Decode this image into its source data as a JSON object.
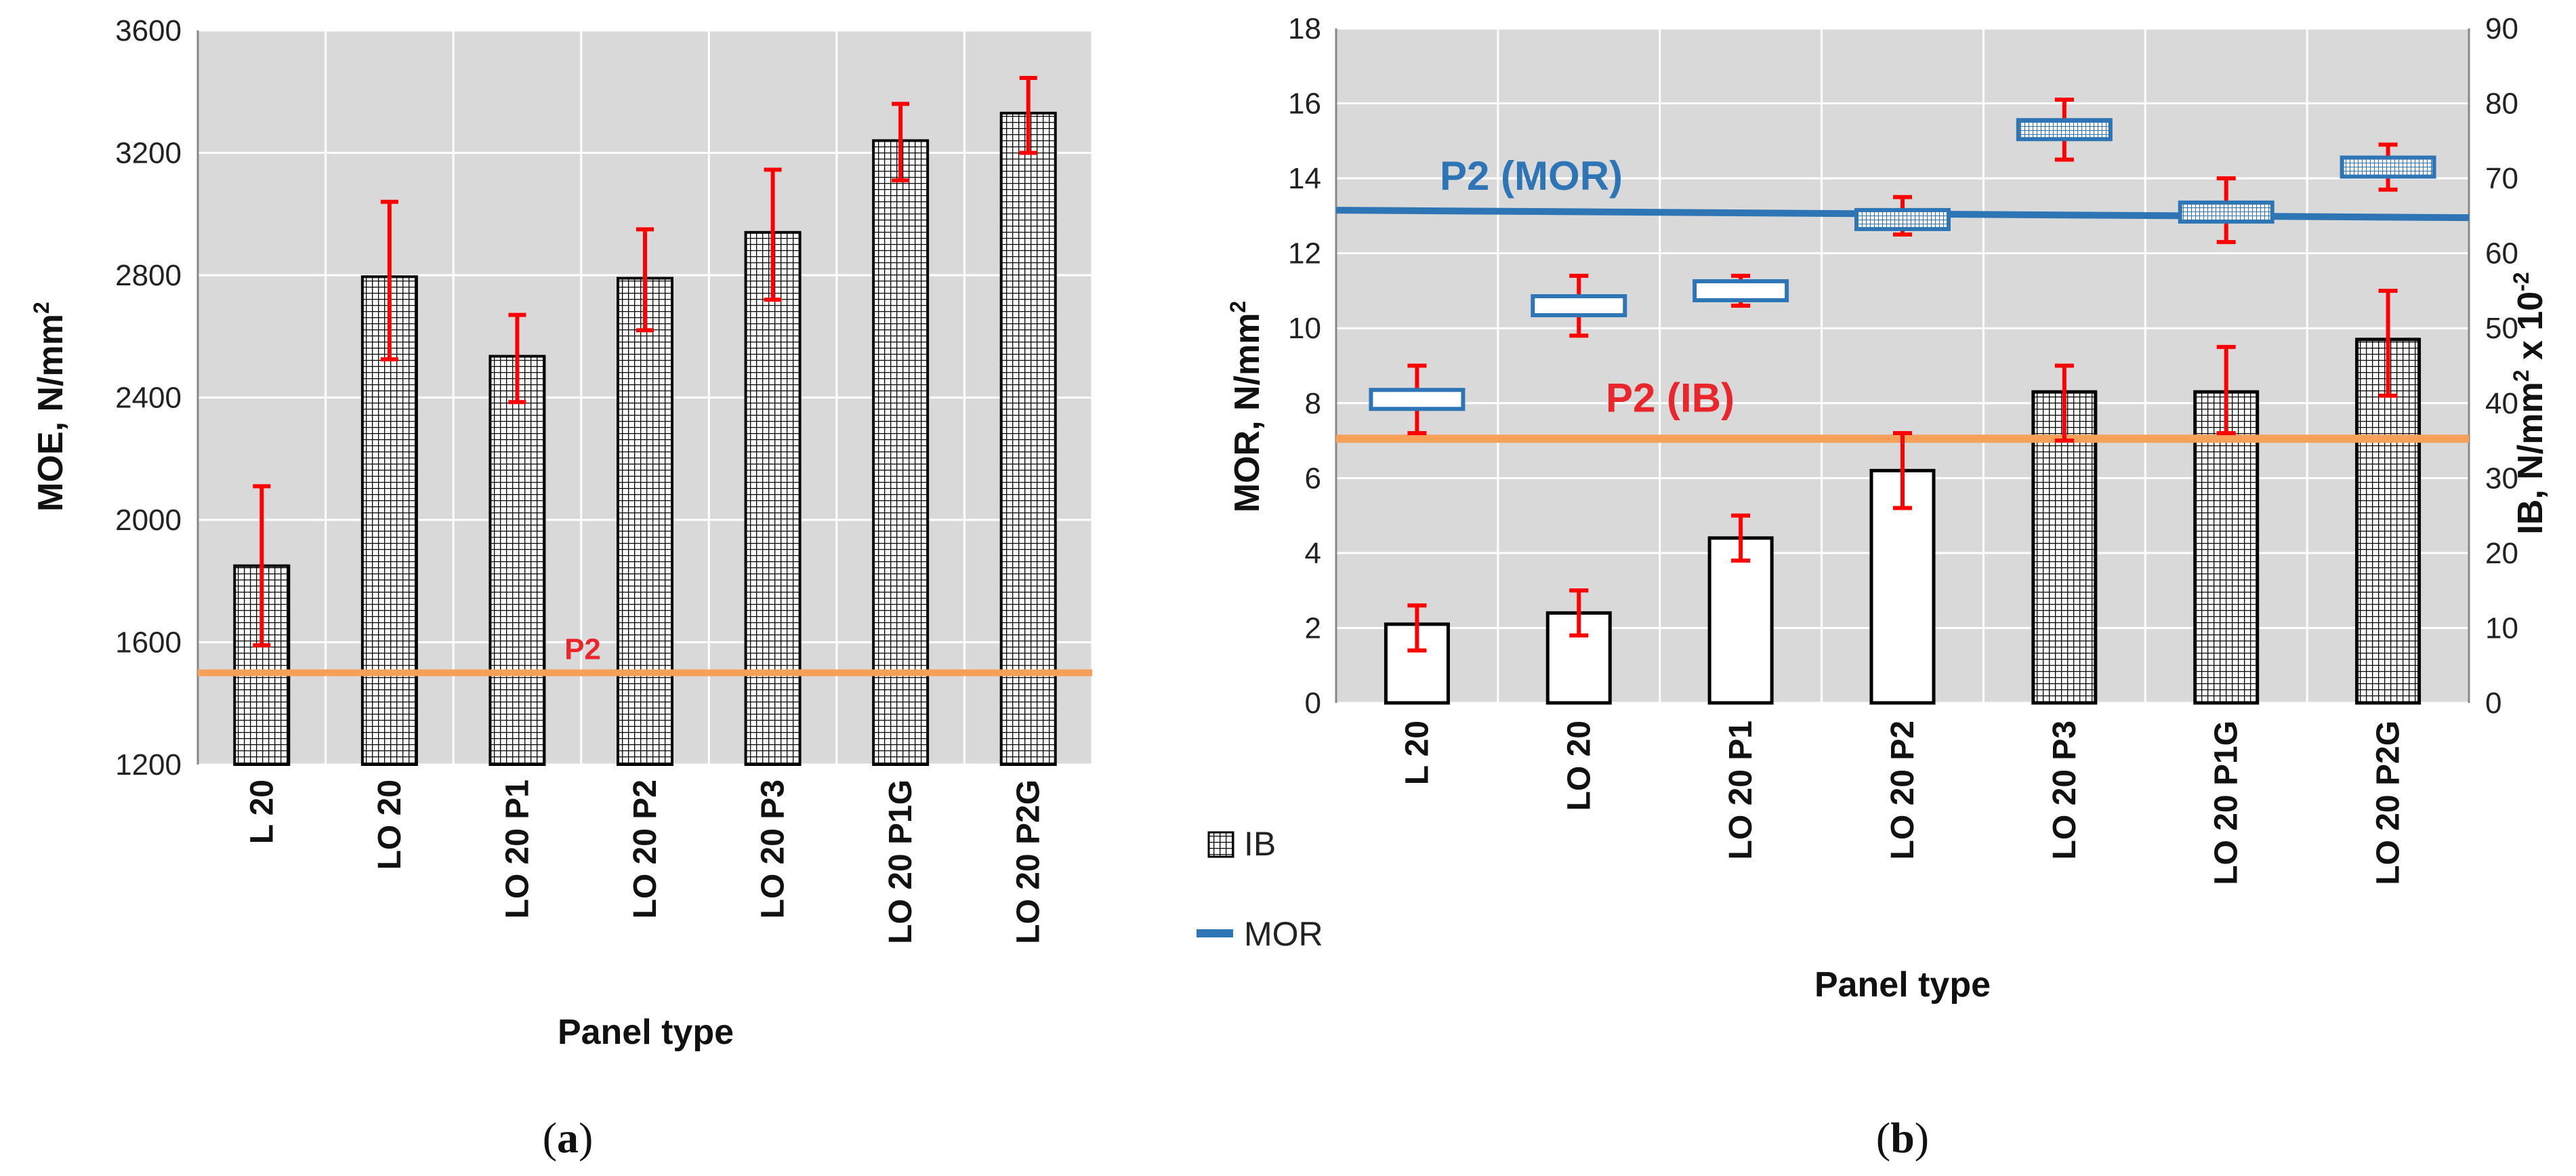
{
  "colors": {
    "plot_bg": "#d9d9d9",
    "grid": "#ffffff",
    "bar_stroke": "#000000",
    "error": "#ff0000",
    "ref_orange": "#f6a05a",
    "ref_blue": "#2e75b6",
    "ib_text": "#e8262b",
    "mor_text": "#2e75b6"
  },
  "chart_data": [
    {
      "type": "bar",
      "panel": "a",
      "caption_letter": "a",
      "categories": [
        "L 20",
        "LO 20",
        "LO 20 P1",
        "LO 20 P2",
        "LO 20 P3",
        "LO 20 P1G",
        "LO 20 P2G"
      ],
      "values": [
        1850,
        2795,
        2535,
        2790,
        2940,
        3240,
        3330
      ],
      "errors_low": [
        1590,
        2525,
        2385,
        2620,
        2720,
        3110,
        3200
      ],
      "errors_high": [
        2110,
        3040,
        2670,
        2950,
        3145,
        3360,
        3445
      ],
      "ylabel": "MOE, N/mm",
      "ylabel_sup": "2",
      "xlabel": "Panel type",
      "ylim": [
        1200,
        3600
      ],
      "yticks": [
        "1200",
        "1600",
        "2000",
        "2400",
        "2800",
        "3200",
        "3600"
      ],
      "reference_line": {
        "label": "P2",
        "value": 1500
      }
    },
    {
      "type": "bar",
      "panel": "b",
      "caption_letter": "b",
      "categories": [
        "L 20",
        "LO 20",
        "LO 20 P1",
        "LO 20 P2",
        "LO 20 P3",
        "LO 20 P1G",
        "LO 20 P2G"
      ],
      "series": [
        {
          "name": "IB",
          "axis": "right",
          "values": [
            10.5,
            12,
            22,
            31,
            41.5,
            41.5,
            48.5
          ],
          "errors_low": [
            7,
            9,
            19,
            26,
            35,
            36,
            41
          ],
          "errors_high": [
            13,
            15,
            25,
            36,
            45,
            47.5,
            55
          ],
          "white_fill_categories": [
            0,
            1,
            2,
            3
          ]
        },
        {
          "name": "MOR",
          "axis": "left",
          "values": [
            8.1,
            10.6,
            11.0,
            12.9,
            15.3,
            13.1,
            14.3
          ],
          "errors_low": [
            7.2,
            9.8,
            10.6,
            12.5,
            14.5,
            12.3,
            13.7
          ],
          "errors_high": [
            9.0,
            11.4,
            11.4,
            13.5,
            16.1,
            14.0,
            14.9
          ],
          "hatched_categories": [
            3,
            4,
            5,
            6
          ]
        }
      ],
      "ylabel": "MOR, N/mm",
      "ylabel_sup": "2",
      "y2label_main": "IB, N/mm",
      "y2label_sup1": "2",
      "y2label_mid": " x 10",
      "y2label_sup2": "-2",
      "xlabel": "Panel type",
      "ylim": [
        0,
        18
      ],
      "y2lim": [
        0,
        90
      ],
      "yticks": [
        "0",
        "2",
        "4",
        "6",
        "8",
        "10",
        "12",
        "14",
        "16",
        "18"
      ],
      "y2ticks": [
        "0",
        "10",
        "20",
        "30",
        "40",
        "50",
        "60",
        "70",
        "80",
        "90"
      ],
      "reference_lines": [
        {
          "label": "P2 (MOR)",
          "axis": "left",
          "value_start": 13.15,
          "value_end": 12.95
        },
        {
          "label": "P2 (IB)",
          "axis": "left",
          "value": 7.05
        }
      ],
      "legend": [
        {
          "name": "IB",
          "marker": "hatched-square"
        },
        {
          "name": "MOR",
          "marker": "line"
        }
      ]
    }
  ]
}
